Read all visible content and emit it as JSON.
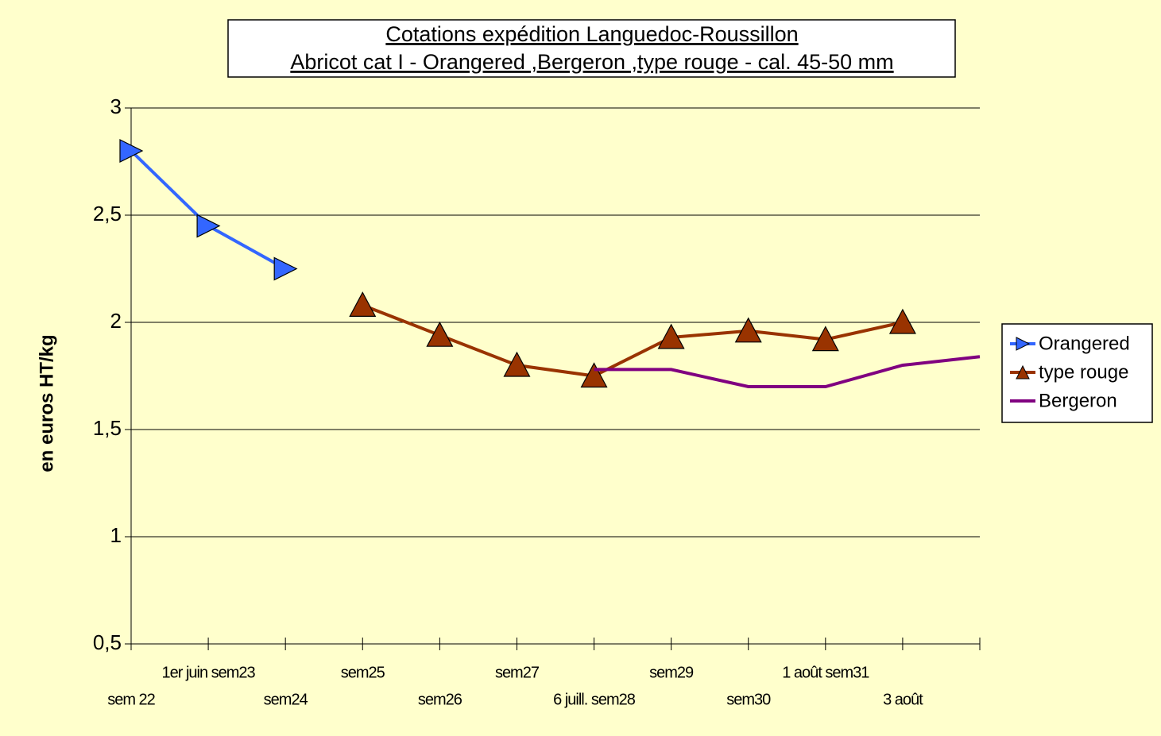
{
  "chart_data": {
    "type": "line",
    "title": "Cotations expédition Languedoc-Roussillon",
    "subtitle": "Abricot cat I -  Orangered ,Bergeron ,type rouge - cal. 45-50 mm",
    "y_label": "en euros HT/kg",
    "categories": [
      "sem 22",
      "1er juin sem23",
      "sem24",
      "sem25",
      "sem26",
      "sem27",
      "6 juill. sem28",
      "sem29",
      "sem30",
      "1 août sem31",
      "3 août",
      null
    ],
    "series": [
      {
        "name": "Orangered",
        "color": "#3366ff",
        "marker": "triangle-right",
        "values": [
          2.8,
          2.45,
          2.25,
          null,
          null,
          null,
          null,
          null,
          null,
          null,
          null,
          null
        ]
      },
      {
        "name": "type rouge",
        "color": "#993300",
        "marker": "triangle-up",
        "values": [
          null,
          null,
          null,
          2.08,
          1.94,
          1.8,
          1.75,
          1.93,
          1.96,
          1.92,
          2.0,
          null
        ]
      },
      {
        "name": "Bergeron",
        "color": "#800080",
        "values": [
          null,
          null,
          null,
          null,
          null,
          null,
          1.78,
          1.78,
          1.7,
          1.7,
          1.8,
          1.84
        ]
      }
    ],
    "ylim": [
      0.5,
      3
    ],
    "yticks": [
      {
        "value": 0.5,
        "label": "0,5"
      },
      1,
      {
        "value": 1.5,
        "label": "1,5"
      },
      2,
      {
        "value": 2.5,
        "label": "2,5"
      },
      3
    ],
    "grid": true,
    "legend": "right"
  }
}
